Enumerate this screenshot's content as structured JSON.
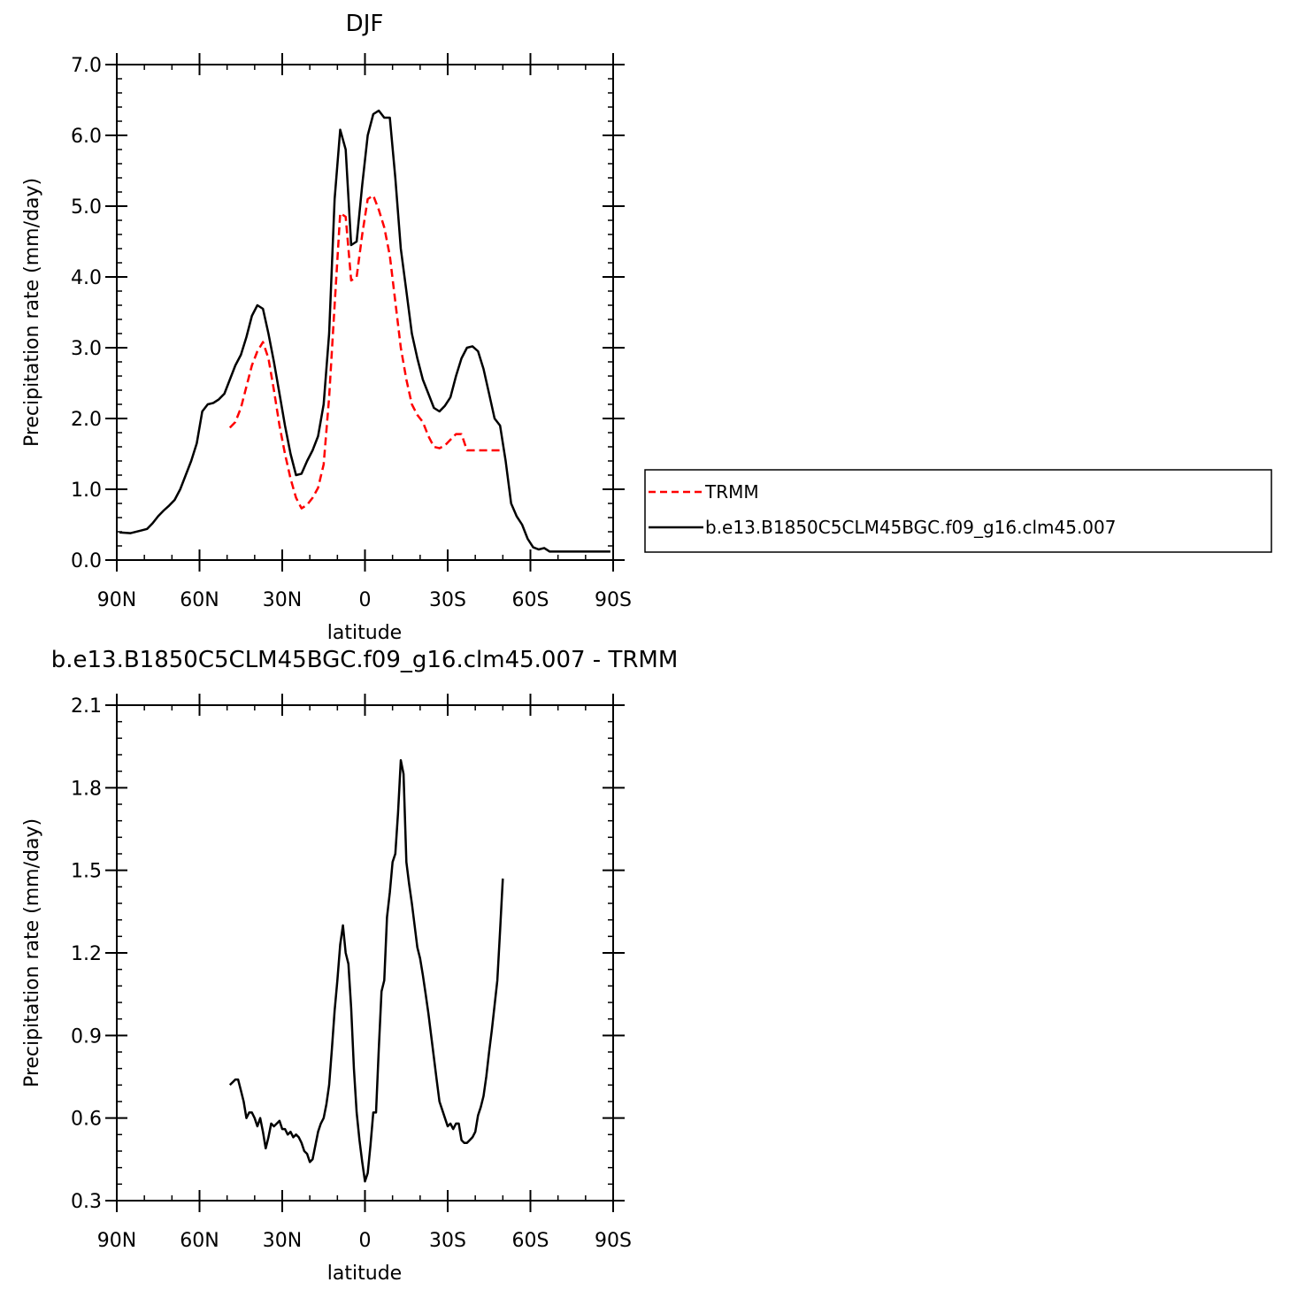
{
  "chart_data": [
    {
      "type": "line",
      "title": "DJF",
      "xlabel": "latitude",
      "ylabel": "Precipitation rate (mm/day)",
      "xlim": [
        -90,
        90
      ],
      "ylim": [
        0,
        7
      ],
      "xticks": [
        {
          "v": -90,
          "label": "90N"
        },
        {
          "v": -60,
          "label": "60N"
        },
        {
          "v": -30,
          "label": "30N"
        },
        {
          "v": 0,
          "label": "0"
        },
        {
          "v": 30,
          "label": "30S"
        },
        {
          "v": 60,
          "label": "60S"
        },
        {
          "v": 90,
          "label": "90S"
        }
      ],
      "yticks": [
        {
          "v": 0,
          "label": "0.0"
        },
        {
          "v": 1,
          "label": "1.0"
        },
        {
          "v": 2,
          "label": "2.0"
        },
        {
          "v": 3,
          "label": "3.0"
        },
        {
          "v": 4,
          "label": "4.0"
        },
        {
          "v": 5,
          "label": "5.0"
        },
        {
          "v": 6,
          "label": "6.0"
        },
        {
          "v": 7,
          "label": "7.0"
        }
      ],
      "legend_position": "right",
      "series": [
        {
          "name": "TRMM",
          "color": "#ff0000",
          "style": "dashed",
          "x": [
            -49,
            -47,
            -45,
            -43,
            -41,
            -39,
            -37,
            -35,
            -33,
            -31,
            -29,
            -27,
            -25,
            -23,
            -21,
            -19,
            -17,
            -15,
            -13,
            -11,
            -9,
            -7,
            -5,
            -3,
            -1,
            1,
            3,
            5,
            7,
            9,
            11,
            13,
            15,
            17,
            19,
            21,
            23,
            25,
            27,
            29,
            31,
            33,
            35,
            37,
            39,
            41,
            43,
            45,
            47,
            49
          ],
          "y": [
            1.87,
            1.95,
            2.15,
            2.45,
            2.75,
            2.95,
            3.08,
            2.85,
            2.4,
            1.9,
            1.5,
            1.15,
            0.88,
            0.73,
            0.78,
            0.88,
            1.02,
            1.35,
            2.3,
            3.6,
            4.9,
            4.85,
            3.95,
            4.0,
            4.6,
            5.1,
            5.15,
            4.95,
            4.7,
            4.3,
            3.65,
            3.0,
            2.55,
            2.2,
            2.05,
            1.95,
            1.75,
            1.6,
            1.58,
            1.62,
            1.7,
            1.78,
            1.78,
            1.55,
            1.55,
            1.55,
            1.55,
            1.55,
            1.55,
            1.55
          ]
        },
        {
          "name": "b.e13.B1850C5CLM45BGC.f09_g16.clm45.007",
          "color": "#000000",
          "style": "solid",
          "x": [
            -89,
            -85,
            -81,
            -79,
            -77,
            -75,
            -73,
            -71,
            -69,
            -67,
            -65,
            -63,
            -61,
            -59,
            -57,
            -55,
            -53,
            -51,
            -49,
            -47,
            -45,
            -43,
            -41,
            -39,
            -37,
            -35,
            -33,
            -31,
            -29,
            -27,
            -25,
            -23,
            -21,
            -19,
            -17,
            -15,
            -13,
            -11,
            -9,
            -7,
            -5,
            -3,
            -1,
            1,
            3,
            5,
            7,
            9,
            11,
            13,
            15,
            17,
            19,
            21,
            23,
            25,
            27,
            29,
            31,
            33,
            35,
            37,
            39,
            41,
            43,
            45,
            47,
            49,
            51,
            53,
            55,
            57,
            59,
            61,
            63,
            65,
            67,
            69,
            71,
            73,
            75,
            77,
            79,
            81,
            83,
            85,
            87,
            89
          ],
          "y": [
            0.39,
            0.38,
            0.42,
            0.44,
            0.52,
            0.62,
            0.7,
            0.77,
            0.85,
            1.0,
            1.2,
            1.4,
            1.65,
            2.1,
            2.2,
            2.22,
            2.27,
            2.35,
            2.55,
            2.75,
            2.9,
            3.15,
            3.45,
            3.6,
            3.55,
            3.2,
            2.8,
            2.35,
            1.9,
            1.5,
            1.2,
            1.22,
            1.4,
            1.55,
            1.75,
            2.2,
            3.2,
            5.1,
            6.08,
            5.8,
            4.45,
            4.5,
            5.3,
            6.0,
            6.3,
            6.35,
            6.25,
            6.25,
            5.4,
            4.4,
            3.8,
            3.2,
            2.85,
            2.55,
            2.35,
            2.15,
            2.1,
            2.18,
            2.3,
            2.6,
            2.85,
            3.0,
            3.02,
            2.95,
            2.7,
            2.35,
            2.0,
            1.9,
            1.4,
            0.8,
            0.62,
            0.5,
            0.3,
            0.18,
            0.15,
            0.17,
            0.12,
            0.12,
            0.12,
            0.12,
            0.12,
            0.12,
            0.12,
            0.12,
            0.12,
            0.12,
            0.12,
            0.12
          ]
        }
      ]
    },
    {
      "type": "line",
      "title": "b.e13.B1850C5CLM45BGC.f09_g16.clm45.007 - TRMM",
      "xlabel": "latitude",
      "ylabel": "Precipitation rate (mm/day)",
      "xlim": [
        -90,
        90
      ],
      "ylim": [
        0.3,
        2.1
      ],
      "xticks": [
        {
          "v": -90,
          "label": "90N"
        },
        {
          "v": -60,
          "label": "60N"
        },
        {
          "v": -30,
          "label": "30N"
        },
        {
          "v": 0,
          "label": "0"
        },
        {
          "v": 30,
          "label": "30S"
        },
        {
          "v": 60,
          "label": "60S"
        },
        {
          "v": 90,
          "label": "90S"
        }
      ],
      "yticks": [
        {
          "v": 0.3,
          "label": "0.3"
        },
        {
          "v": 0.6,
          "label": "0.6"
        },
        {
          "v": 0.9,
          "label": "0.9"
        },
        {
          "v": 1.2,
          "label": "1.2"
        },
        {
          "v": 1.5,
          "label": "1.5"
        },
        {
          "v": 1.8,
          "label": "1.8"
        },
        {
          "v": 2.1,
          "label": "2.1"
        }
      ],
      "series": [
        {
          "color": "#000000",
          "style": "solid",
          "x": [
            -49,
            -48,
            -47,
            -46,
            -45,
            -44,
            -43,
            -42,
            -41,
            -40,
            -39,
            -38,
            -37,
            -36,
            -35,
            -34,
            -33,
            -32,
            -31,
            -30,
            -29,
            -28,
            -27,
            -26,
            -25,
            -24,
            -23,
            -22,
            -21,
            -20,
            -19,
            -18,
            -17,
            -16,
            -15,
            -14,
            -13,
            -12,
            -11,
            -10,
            -9,
            -8,
            -7,
            -6,
            -5,
            -4,
            -3,
            -2,
            -1,
            0,
            1,
            2,
            3,
            4,
            5,
            6,
            7,
            8,
            9,
            10,
            11,
            12,
            13,
            14,
            15,
            16,
            17,
            18,
            19,
            20,
            21,
            22,
            23,
            24,
            25,
            26,
            27,
            28,
            29,
            30,
            31,
            32,
            33,
            34,
            35,
            36,
            37,
            38,
            39,
            40,
            41,
            42,
            43,
            44,
            45,
            46,
            47,
            48,
            49,
            50
          ],
          "y": [
            0.72,
            0.73,
            0.74,
            0.74,
            0.7,
            0.66,
            0.6,
            0.62,
            0.62,
            0.6,
            0.57,
            0.6,
            0.55,
            0.49,
            0.53,
            0.58,
            0.57,
            0.58,
            0.59,
            0.56,
            0.56,
            0.54,
            0.55,
            0.53,
            0.54,
            0.53,
            0.51,
            0.48,
            0.47,
            0.44,
            0.45,
            0.5,
            0.55,
            0.58,
            0.6,
            0.65,
            0.72,
            0.85,
            0.99,
            1.1,
            1.23,
            1.3,
            1.2,
            1.16,
            1.0,
            0.78,
            0.62,
            0.52,
            0.44,
            0.37,
            0.4,
            0.5,
            0.62,
            0.62,
            0.85,
            1.06,
            1.1,
            1.33,
            1.42,
            1.53,
            1.56,
            1.71,
            1.9,
            1.85,
            1.53,
            1.45,
            1.38,
            1.3,
            1.22,
            1.18,
            1.12,
            1.05,
            0.98,
            0.9,
            0.82,
            0.74,
            0.66,
            0.63,
            0.6,
            0.57,
            0.58,
            0.56,
            0.58,
            0.58,
            0.52,
            0.51,
            0.51,
            0.52,
            0.53,
            0.55,
            0.61,
            0.64,
            0.68,
            0.75,
            0.84,
            0.92,
            1.01,
            1.1,
            1.28,
            1.47
          ]
        }
      ]
    }
  ]
}
